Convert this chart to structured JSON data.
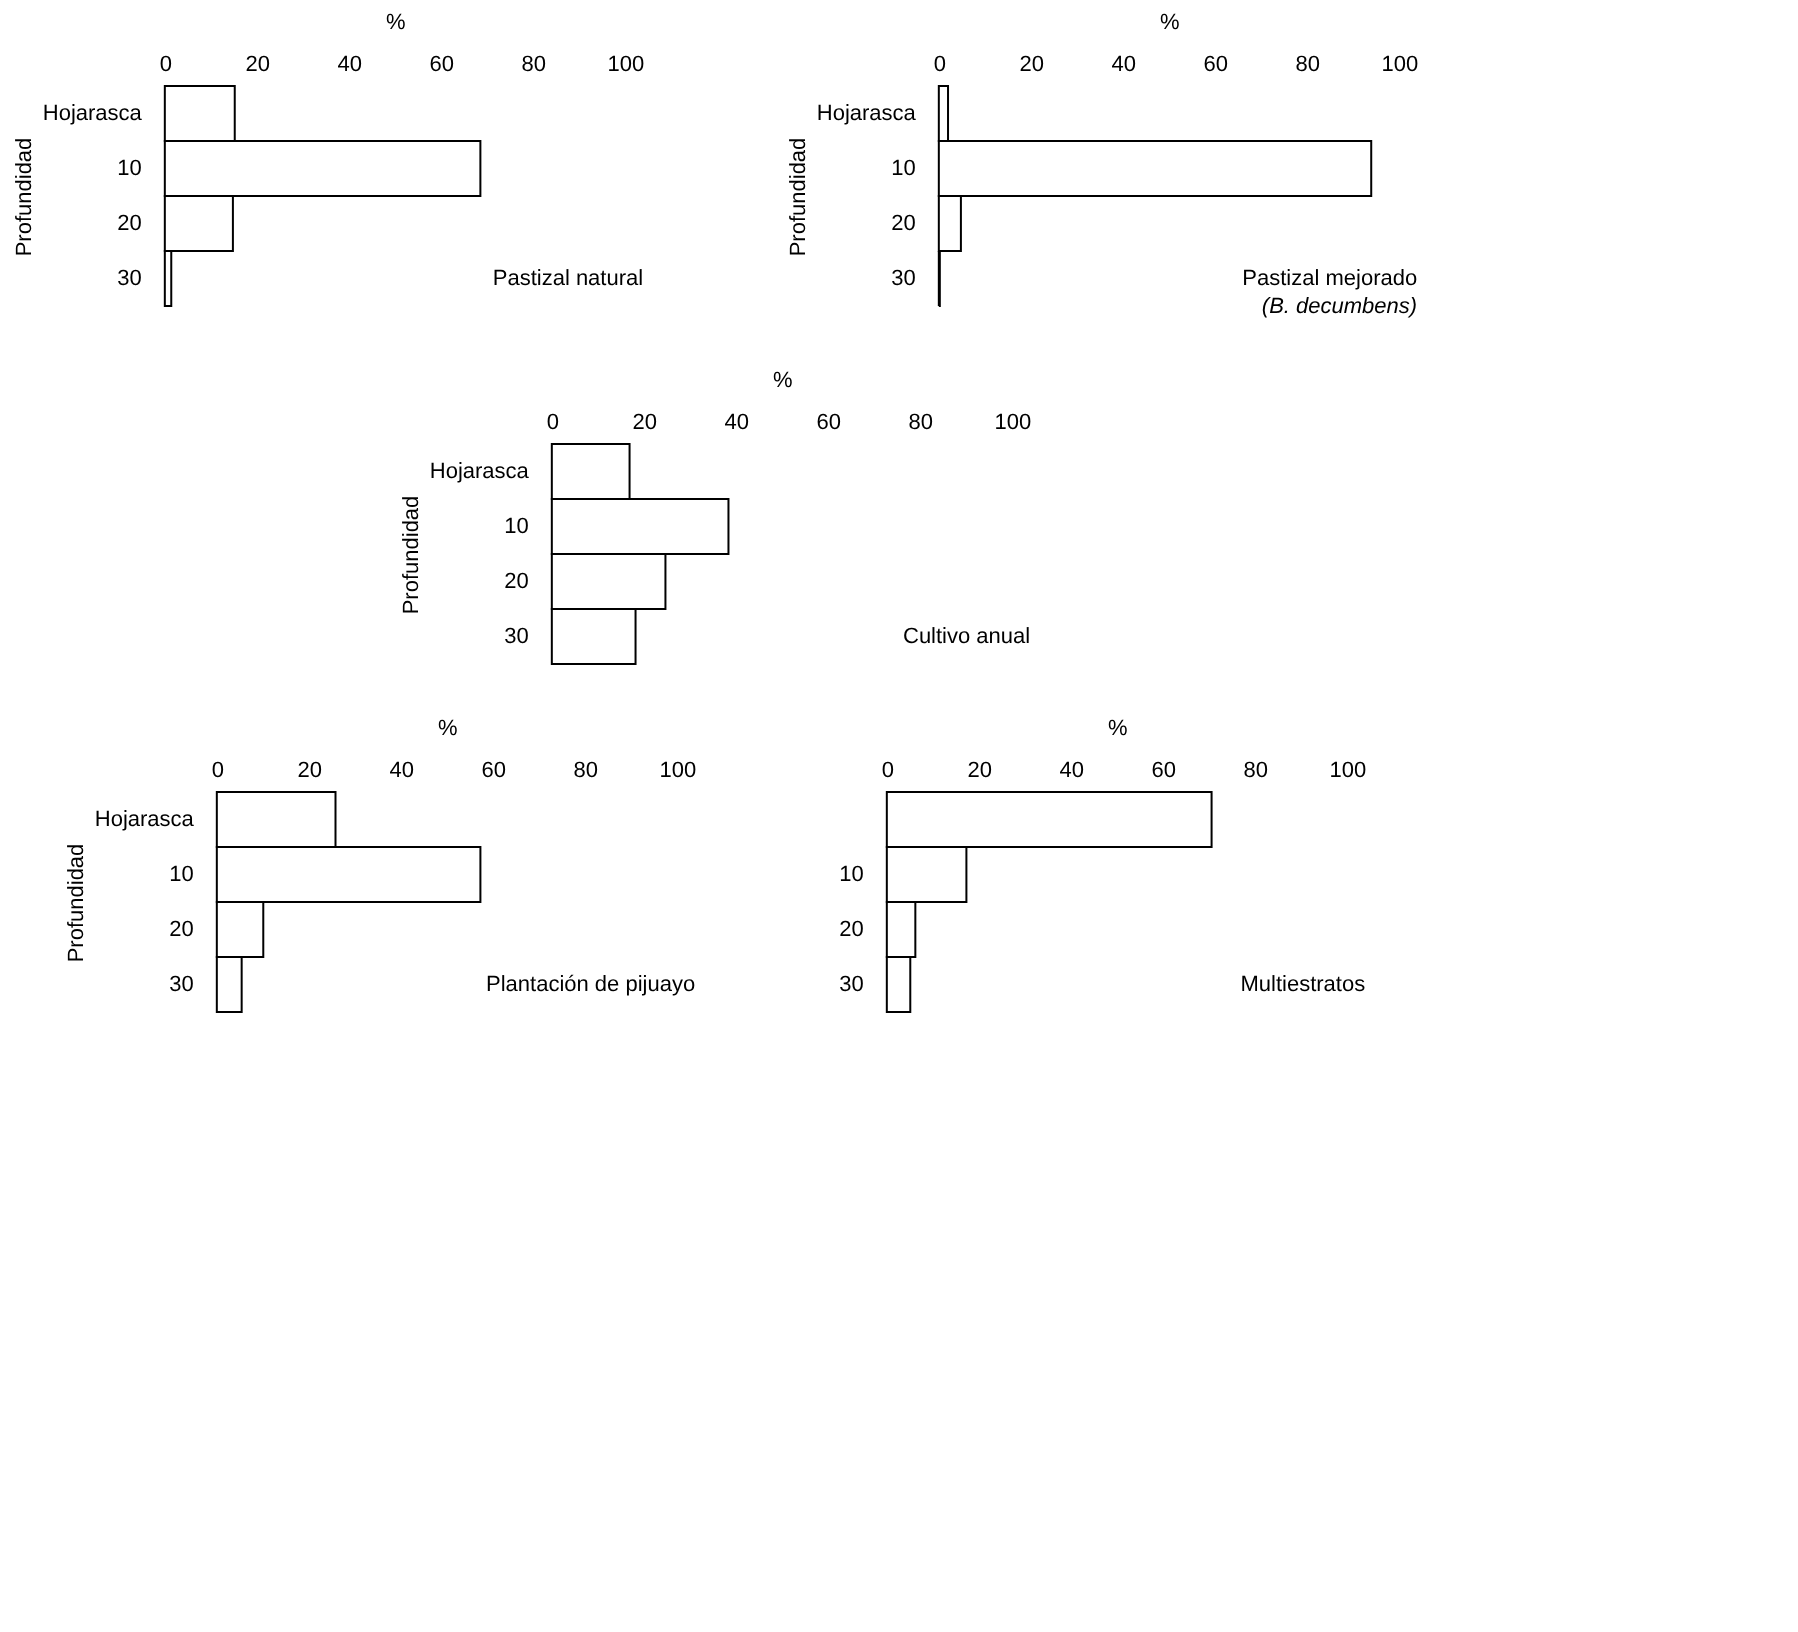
{
  "chart_data": [
    {
      "type": "bar",
      "orientation": "horizontal",
      "title": "Pastizal natural",
      "xlabel": "%",
      "ylabel": "Profundidad",
      "categories": [
        "Hojarasca",
        "10",
        "20",
        "30"
      ],
      "values": [
        15.2,
        68.6,
        14.8,
        1.4
      ],
      "color": "#ffffff",
      "xlim": [
        0,
        100
      ],
      "xticks": [
        0,
        20,
        40,
        60,
        80,
        100
      ]
    },
    {
      "type": "bar",
      "orientation": "horizontal",
      "title": "Pastizal mejorado",
      "subtitle": "(B. decumbens)",
      "xlabel": "%",
      "ylabel": "Profundidad",
      "categories": [
        "Hojarasca",
        "10",
        "20",
        "30"
      ],
      "values": [
        2,
        94,
        4.8,
        0
      ],
      "color": "#ffffff",
      "xlim": [
        0,
        100
      ],
      "xticks": [
        0,
        20,
        40,
        60,
        80,
        100
      ]
    },
    {
      "type": "bar",
      "orientation": "horizontal",
      "title": "Cultivo anual",
      "xlabel": "%",
      "ylabel": "Profundidad",
      "categories": [
        "Hojarasca",
        "10",
        "20",
        "30"
      ],
      "values": [
        16.9,
        38.4,
        24.7,
        18.2
      ],
      "color": "#ffffff",
      "xlim": [
        0,
        100
      ],
      "xticks": [
        0,
        20,
        40,
        60,
        80,
        100
      ]
    },
    {
      "type": "bar",
      "orientation": "horizontal",
      "title": "Plantación de pijuayo",
      "xlabel": "%",
      "ylabel": "Profundidad",
      "categories": [
        "Hojarasca",
        "10",
        "20",
        "30"
      ],
      "values": [
        25.8,
        57.3,
        10.1,
        5.4
      ],
      "color": "#ffffff",
      "xlim": [
        0,
        100
      ],
      "xticks": [
        0,
        20,
        40,
        60,
        80,
        100
      ]
    },
    {
      "type": "bar",
      "orientation": "horizontal",
      "title": "Multiestratos",
      "xlabel": "%",
      "categories": [
        null,
        "10",
        "20",
        "30"
      ],
      "values": [
        70.6,
        17.3,
        6.2,
        5.1
      ],
      "color": "#ffffff",
      "xlim": [
        0,
        100
      ],
      "xticks": [
        0,
        20,
        40,
        60,
        80,
        100
      ]
    }
  ]
}
